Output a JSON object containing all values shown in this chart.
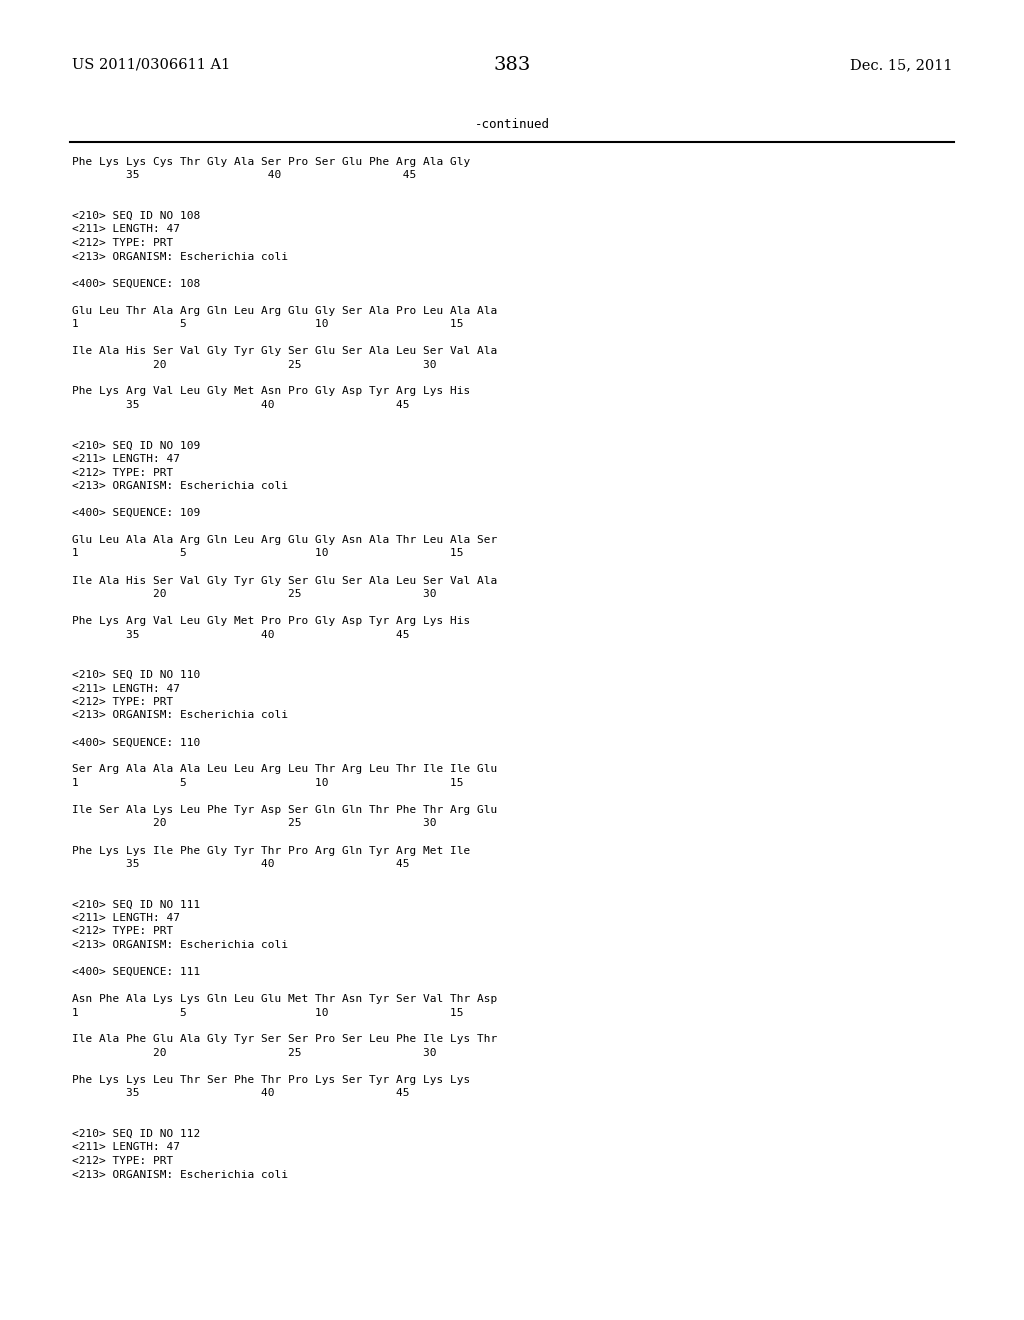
{
  "patent_number": "US 2011/0306611 A1",
  "date": "Dec. 15, 2011",
  "page_number": "383",
  "continued_label": "-continued",
  "background_color": "#ffffff",
  "text_color": "#000000",
  "mono_font_size": 8.0,
  "header_font_size": 10.5,
  "page_num_font_size": 14,
  "content_lines": [
    "Phe Lys Lys Cys Thr Gly Ala Ser Pro Ser Glu Phe Arg Ala Gly",
    "        35                   40                  45",
    "",
    "",
    "<210> SEQ ID NO 108",
    "<211> LENGTH: 47",
    "<212> TYPE: PRT",
    "<213> ORGANISM: Escherichia coli",
    "",
    "<400> SEQUENCE: 108",
    "",
    "Glu Leu Thr Ala Arg Gln Leu Arg Glu Gly Ser Ala Pro Leu Ala Ala",
    "1               5                   10                  15",
    "",
    "Ile Ala His Ser Val Gly Tyr Gly Ser Glu Ser Ala Leu Ser Val Ala",
    "            20                  25                  30",
    "",
    "Phe Lys Arg Val Leu Gly Met Asn Pro Gly Asp Tyr Arg Lys His",
    "        35                  40                  45",
    "",
    "",
    "<210> SEQ ID NO 109",
    "<211> LENGTH: 47",
    "<212> TYPE: PRT",
    "<213> ORGANISM: Escherichia coli",
    "",
    "<400> SEQUENCE: 109",
    "",
    "Glu Leu Ala Ala Arg Gln Leu Arg Glu Gly Asn Ala Thr Leu Ala Ser",
    "1               5                   10                  15",
    "",
    "Ile Ala His Ser Val Gly Tyr Gly Ser Glu Ser Ala Leu Ser Val Ala",
    "            20                  25                  30",
    "",
    "Phe Lys Arg Val Leu Gly Met Pro Pro Gly Asp Tyr Arg Lys His",
    "        35                  40                  45",
    "",
    "",
    "<210> SEQ ID NO 110",
    "<211> LENGTH: 47",
    "<212> TYPE: PRT",
    "<213> ORGANISM: Escherichia coli",
    "",
    "<400> SEQUENCE: 110",
    "",
    "Ser Arg Ala Ala Ala Leu Leu Arg Leu Thr Arg Leu Thr Ile Ile Glu",
    "1               5                   10                  15",
    "",
    "Ile Ser Ala Lys Leu Phe Tyr Asp Ser Gln Gln Thr Phe Thr Arg Glu",
    "            20                  25                  30",
    "",
    "Phe Lys Lys Ile Phe Gly Tyr Thr Pro Arg Gln Tyr Arg Met Ile",
    "        35                  40                  45",
    "",
    "",
    "<210> SEQ ID NO 111",
    "<211> LENGTH: 47",
    "<212> TYPE: PRT",
    "<213> ORGANISM: Escherichia coli",
    "",
    "<400> SEQUENCE: 111",
    "",
    "Asn Phe Ala Lys Lys Gln Leu Glu Met Thr Asn Tyr Ser Val Thr Asp",
    "1               5                   10                  15",
    "",
    "Ile Ala Phe Glu Ala Gly Tyr Ser Ser Pro Ser Leu Phe Ile Lys Thr",
    "            20                  25                  30",
    "",
    "Phe Lys Lys Leu Thr Ser Phe Thr Pro Lys Ser Tyr Arg Lys Lys",
    "        35                  40                  45",
    "",
    "",
    "<210> SEQ ID NO 112",
    "<211> LENGTH: 47",
    "<212> TYPE: PRT",
    "<213> ORGANISM: Escherichia coli"
  ]
}
